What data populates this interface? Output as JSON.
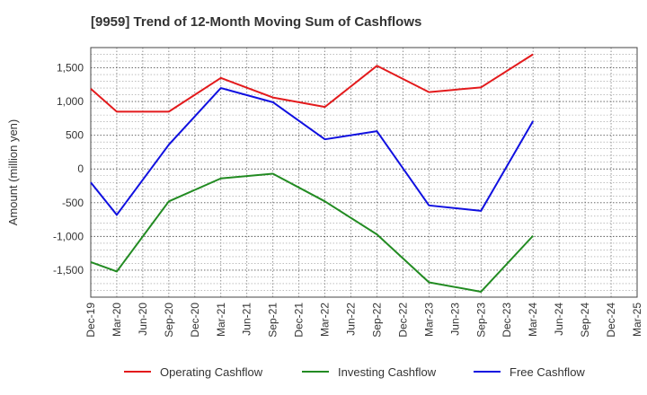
{
  "chart_data": {
    "type": "line",
    "title": "[9959]  Trend of 12-Month Moving Sum of Cashflows",
    "ylabel": "Amount (million yen)",
    "xlabel": "",
    "ylim": [
      -1900,
      1800
    ],
    "y_ticks": [
      -1500,
      -1000,
      -500,
      0,
      500,
      1000,
      1500
    ],
    "y_tick_labels": [
      "-1,500",
      "-1,000",
      "-500",
      "0",
      "500",
      "1,000",
      "1,500"
    ],
    "categories": [
      "Dec-19",
      "Mar-20",
      "Jun-20",
      "Sep-20",
      "Dec-20",
      "Mar-21",
      "Jun-21",
      "Sep-21",
      "Dec-21",
      "Mar-22",
      "Jun-22",
      "Sep-22",
      "Dec-22",
      "Mar-23",
      "Jun-23",
      "Sep-23",
      "Dec-23",
      "Mar-24",
      "Jun-24",
      "Sep-24",
      "Dec-24",
      "Mar-25"
    ],
    "grid": true,
    "legend_position": "bottom",
    "series": [
      {
        "name": "Operating Cashflow",
        "color": "#e31a1c",
        "values": [
          1190,
          850,
          null,
          850,
          null,
          1350,
          null,
          1060,
          null,
          920,
          null,
          1530,
          null,
          1140,
          null,
          1210,
          null,
          1700,
          null,
          null,
          null,
          null
        ]
      },
      {
        "name": "Investing Cashflow",
        "color": "#228b22",
        "values": [
          -1380,
          -1520,
          null,
          -480,
          null,
          -140,
          null,
          -70,
          null,
          -480,
          null,
          -970,
          null,
          -1680,
          null,
          -1820,
          null,
          -990,
          null,
          null,
          null,
          null
        ]
      },
      {
        "name": "Free Cashflow",
        "color": "#1010e0",
        "values": [
          -200,
          -680,
          null,
          360,
          null,
          1200,
          null,
          990,
          null,
          440,
          null,
          560,
          null,
          -540,
          null,
          -620,
          null,
          710,
          null,
          null,
          null,
          null
        ]
      }
    ]
  }
}
